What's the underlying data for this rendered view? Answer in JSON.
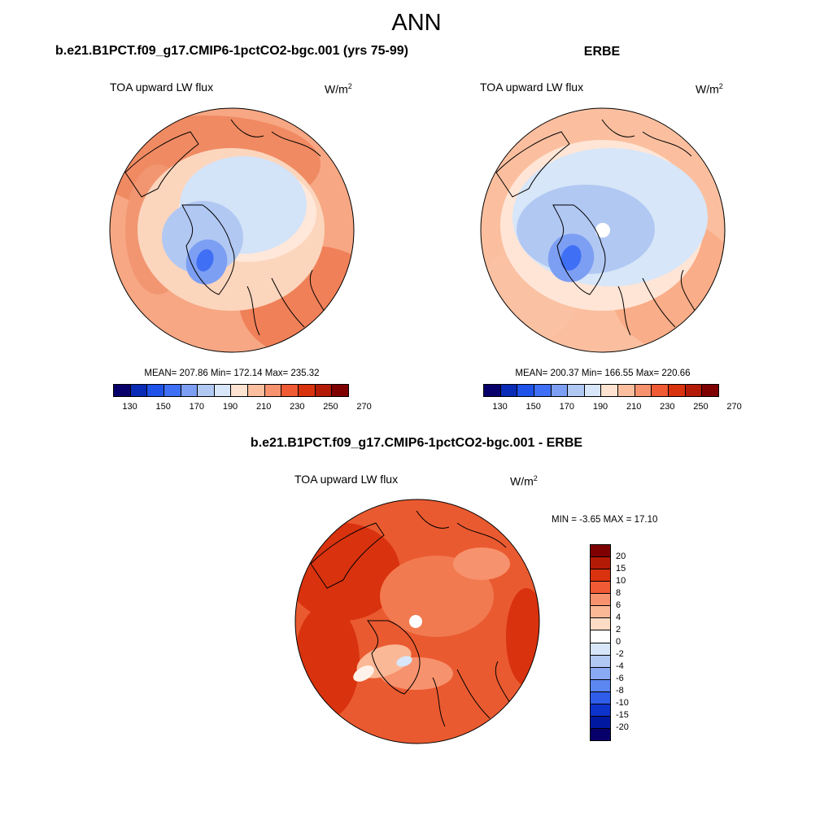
{
  "title": "ANN",
  "panels": [
    {
      "title": "b.e21.B1PCT.f09_g17.CMIP6-1pctCO2-bgc.001 (yrs 75-99)",
      "variable": "TOA upward LW flux",
      "units": "W/m",
      "units_sup": "2",
      "stats": "MEAN= 207.86  Min= 172.14  Max= 235.32",
      "colorbar_ticks": [
        "130",
        "150",
        "170",
        "190",
        "210",
        "230",
        "250",
        "270"
      ]
    },
    {
      "title": "ERBE",
      "variable": "TOA upward LW flux",
      "units": "W/m",
      "units_sup": "2",
      "stats": "MEAN= 200.37  Min= 166.55  Max= 220.66",
      "colorbar_ticks": [
        "130",
        "150",
        "170",
        "190",
        "210",
        "230",
        "250",
        "270"
      ]
    },
    {
      "title": "b.e21.B1PCT.f09_g17.CMIP6-1pctCO2-bgc.001 - ERBE",
      "variable": "TOA upward LW flux",
      "units": "W/m",
      "units_sup": "2",
      "stats": "MIN =  -3.65 MAX =  17.10",
      "colorbar_ticks": [
        "20",
        "15",
        "10",
        "8",
        "6",
        "4",
        "2",
        "0",
        "-2",
        "-4",
        "-6",
        "-8",
        "-10",
        "-15",
        "-20"
      ]
    }
  ],
  "colors": {
    "abs_scale": [
      "#08006a",
      "#0a2bb6",
      "#1f52e8",
      "#3f6ff4",
      "#7d9ff3",
      "#b1c8f3",
      "#d7e6f8",
      "#fde3d0",
      "#fbbf9f",
      "#f7926e",
      "#f05a34",
      "#d9320e",
      "#b31b07",
      "#7f0000"
    ],
    "diff_scale": [
      "#7f0000",
      "#b31b07",
      "#d9320e",
      "#f05a34",
      "#f7926e",
      "#fbb896",
      "#fddcc6",
      "#ffffff",
      "#d7e6f8",
      "#b1c8f3",
      "#8aaaf3",
      "#5c86f0",
      "#2f5ce8",
      "#0d33cd",
      "#0018a0",
      "#08006a"
    ],
    "map_fill_model": "#f9c8ae",
    "map_fill_obs": "#fcd9c4",
    "map_fill_diff": "#ea5a30"
  }
}
